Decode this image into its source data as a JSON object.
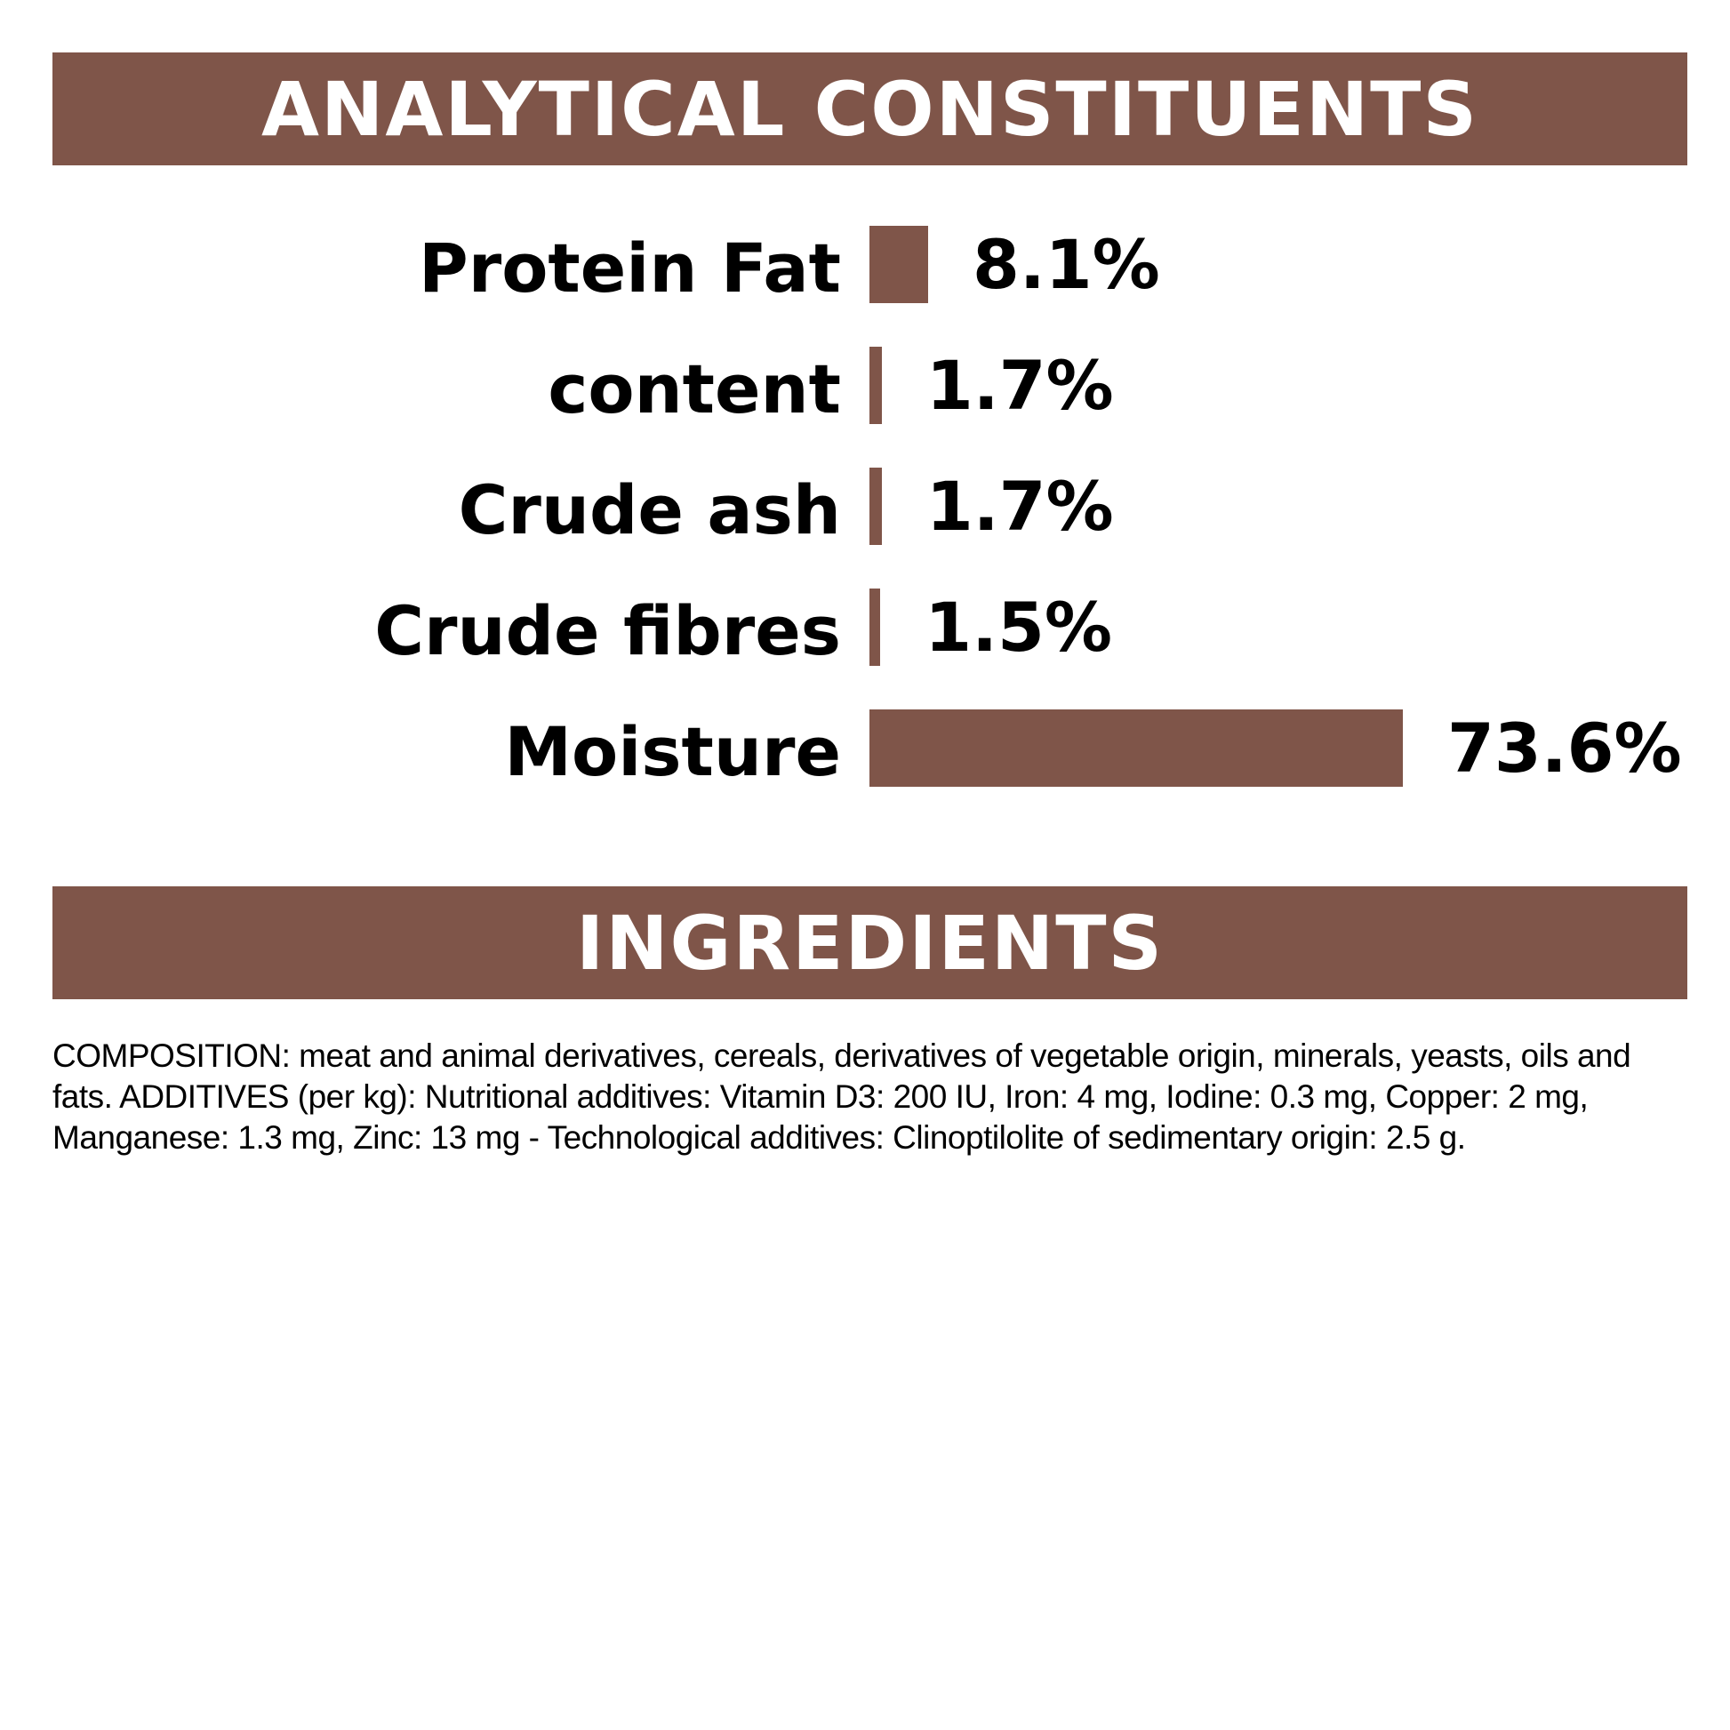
{
  "chart_data": {
    "type": "bar",
    "title": "ANALYTICAL CONSTITUENTS",
    "categories": [
      "Protein Fat",
      "content",
      "Crude ash",
      "Crude fibres",
      "Moisture"
    ],
    "values": [
      8.1,
      1.7,
      1.7,
      1.5,
      73.6
    ],
    "value_labels": [
      "8.1%",
      "1.7%",
      "1.7%",
      "1.5%",
      "73.6%"
    ],
    "color": "#7f5549"
  },
  "ingredients": {
    "title": "INGREDIENTS",
    "text": "COMPOSITION: meat and animal derivatives, cereals, derivatives of vegetable origin, minerals, yeasts, oils and fats. ADDITIVES (per kg): Nutritional additives: Vitamin D3: 200 IU, Iron: 4 mg, Iodine: 0.3 mg, Copper: 2 mg, Manganese: 1.3 mg, Zinc: 13 mg - Technological additives: Clinoptilolite of sedimentary origin: 2.5 g."
  }
}
